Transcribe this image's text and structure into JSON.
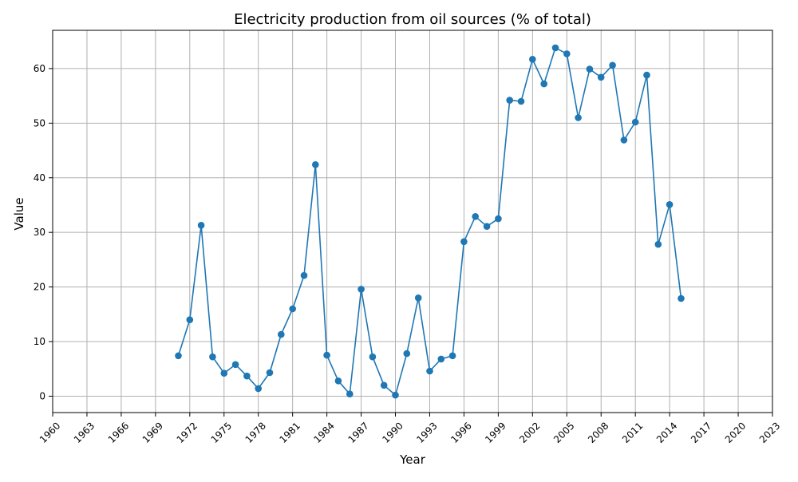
{
  "chart_data": {
    "type": "line",
    "title": "Electricity production from oil sources (% of total)",
    "xlabel": "Year",
    "ylabel": "Value",
    "xlim": [
      1960,
      2023
    ],
    "ylim": [
      -3,
      67
    ],
    "xticks": [
      1960,
      1963,
      1966,
      1969,
      1972,
      1975,
      1978,
      1981,
      1984,
      1987,
      1990,
      1993,
      1996,
      1999,
      2002,
      2005,
      2008,
      2011,
      2014,
      2017,
      2020,
      2023
    ],
    "yticks": [
      0,
      10,
      20,
      30,
      40,
      50,
      60
    ],
    "grid": true,
    "line_color": "#1f77b4",
    "marker": "circle",
    "series": [
      {
        "x": [
          1971,
          1972,
          1973,
          1974,
          1975,
          1976,
          1977,
          1978,
          1979,
          1980,
          1981,
          1982,
          1983,
          1984,
          1985,
          1986,
          1987,
          1988,
          1989,
          1990,
          1991,
          1992,
          1993,
          1994,
          1995,
          1996,
          1997,
          1998,
          1999,
          2000,
          2001,
          2002,
          2003,
          2004,
          2005,
          2006,
          2007,
          2008,
          2009,
          2010,
          2011,
          2012,
          2013,
          2014,
          2015
        ],
        "values": [
          7.4,
          14.0,
          31.3,
          7.2,
          4.2,
          5.8,
          3.7,
          1.4,
          4.3,
          11.3,
          16.0,
          22.1,
          42.4,
          7.5,
          2.8,
          0.4,
          19.6,
          7.2,
          2.0,
          0.2,
          7.8,
          18.0,
          4.6,
          6.8,
          7.4,
          28.3,
          32.9,
          31.1,
          32.5,
          54.2,
          54.0,
          61.7,
          57.2,
          63.8,
          62.7,
          51.0,
          59.9,
          58.4,
          60.6,
          46.9,
          50.2,
          58.8,
          27.8,
          35.1,
          17.9
        ]
      }
    ]
  }
}
